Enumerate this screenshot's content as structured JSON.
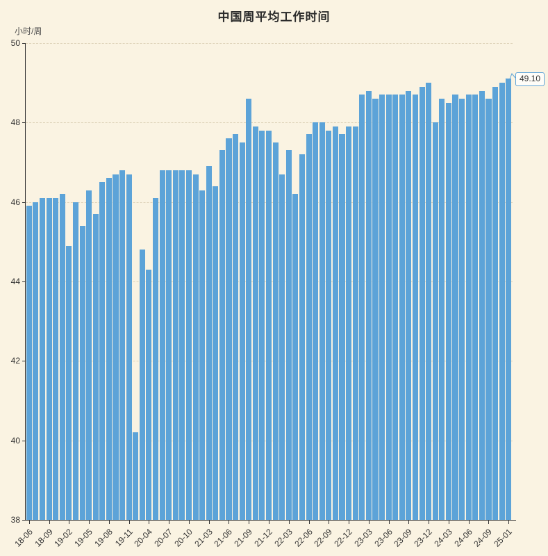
{
  "chart_data": {
    "type": "bar",
    "title": "中国周平均工作时间",
    "ylabel": "小时/周",
    "xlabel": "",
    "ylim": [
      38,
      50
    ],
    "y_ticks": [
      38,
      40,
      42,
      44,
      46,
      48,
      50
    ],
    "grid": "horizontal-dashed",
    "legend_position": "none",
    "x_label_rotation": 45,
    "x_label_every": 3,
    "end_label": "49.10",
    "categories": [
      "18-06",
      "18-07",
      "18-08",
      "18-09",
      "18-10",
      "18-11",
      "19-02",
      "19-03",
      "19-04",
      "19-05",
      "19-06",
      "19-07",
      "19-08",
      "19-09",
      "19-10",
      "19-11",
      "20-02",
      "20-03",
      "20-04",
      "20-05",
      "20-06",
      "20-07",
      "20-08",
      "20-09",
      "20-10",
      "20-11",
      "21-02",
      "21-03",
      "21-04",
      "21-05",
      "21-06",
      "21-07",
      "21-08",
      "21-09",
      "21-10",
      "21-11",
      "21-12",
      "22-01",
      "22-02",
      "22-03",
      "22-04",
      "22-05",
      "22-06",
      "22-07",
      "22-08",
      "22-09",
      "22-10",
      "22-11",
      "22-12",
      "23-01",
      "23-02",
      "23-03",
      "23-04",
      "23-05",
      "23-06",
      "23-07",
      "23-08",
      "23-09",
      "23-10",
      "23-11",
      "23-12",
      "24-01",
      "24-02",
      "24-03",
      "24-04",
      "24-05",
      "24-06",
      "24-07",
      "24-08",
      "24-09",
      "24-10",
      "24-11",
      "25-01"
    ],
    "values": [
      45.9,
      46.0,
      46.1,
      46.1,
      46.1,
      46.2,
      44.9,
      46.0,
      45.4,
      46.3,
      45.7,
      46.5,
      46.6,
      46.7,
      46.8,
      46.7,
      40.2,
      44.8,
      44.3,
      46.1,
      46.8,
      46.8,
      46.8,
      46.8,
      46.8,
      46.7,
      46.3,
      46.9,
      46.4,
      47.3,
      47.6,
      47.7,
      47.5,
      48.6,
      47.9,
      47.8,
      47.8,
      47.5,
      46.7,
      47.3,
      46.2,
      47.2,
      47.7,
      48.0,
      48.0,
      47.8,
      47.9,
      47.7,
      47.9,
      47.9,
      48.7,
      48.8,
      48.6,
      48.7,
      48.7,
      48.7,
      48.7,
      48.8,
      48.7,
      48.9,
      49.0,
      48.0,
      48.6,
      48.5,
      48.7,
      48.6,
      48.7,
      48.7,
      48.8,
      48.6,
      48.9,
      49.0,
      49.1
    ],
    "colors": {
      "background": "#faf3e2",
      "bar": "#5ca3d8",
      "axis": "#333333",
      "gridline": "#ddd2b8",
      "callout_border": "#5ca3d8",
      "callout_background": "#fffdf8",
      "text": "#333333"
    }
  }
}
